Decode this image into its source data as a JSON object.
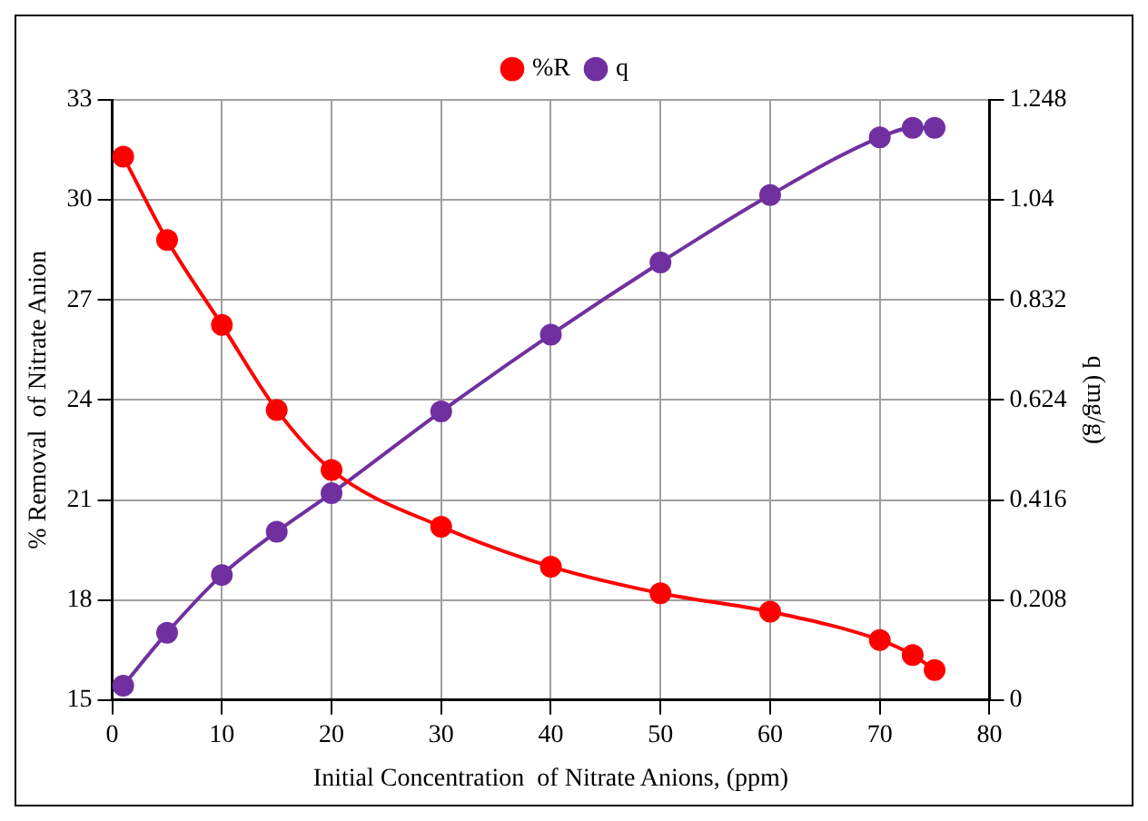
{
  "chart_data": {
    "type": "line",
    "xlabel": "Initial Concentration  of Nitrate Anions, (ppm)",
    "ylabel": "% Removal  of Nitrate Anion",
    "y2label": "q (mg/g)",
    "x": [
      1,
      5,
      10,
      15,
      20,
      30,
      40,
      50,
      60,
      70,
      73,
      75
    ],
    "series": [
      {
        "name": "%R",
        "color": "#ff0000",
        "values": [
          31.3,
          28.8,
          26.25,
          23.7,
          21.9,
          20.2,
          19.0,
          18.2,
          17.65,
          16.8,
          16.35,
          15.9
        ]
      },
      {
        "name": "q",
        "color": "#7030a0",
        "axis": "y2",
        "values": [
          0.03,
          0.14,
          0.26,
          0.35,
          0.43,
          0.6,
          0.76,
          0.91,
          1.05,
          1.17,
          1.19,
          1.19
        ]
      }
    ],
    "xlim": [
      0,
      80
    ],
    "xticks": [
      0,
      10,
      20,
      30,
      40,
      50,
      60,
      70,
      80
    ],
    "ylim": [
      15,
      33
    ],
    "yticks": [
      15,
      18,
      21,
      24,
      27,
      30,
      33
    ],
    "y2lim": [
      0,
      1.248
    ],
    "y2ticks": [
      0,
      0.208,
      0.416,
      0.624,
      0.832,
      1.04,
      1.248
    ],
    "grid": true,
    "legend": "top",
    "marker": "circle",
    "line_style": "solid"
  }
}
